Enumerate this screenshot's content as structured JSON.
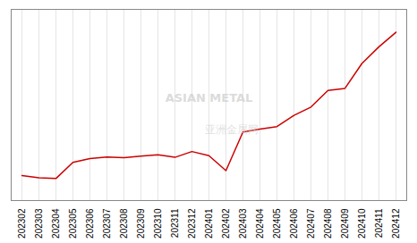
{
  "chart_data": {
    "type": "line",
    "categories": [
      "202302",
      "202303",
      "202304",
      "202305",
      "202306",
      "202307",
      "202308",
      "202309",
      "202310",
      "202311",
      "202312",
      "202401",
      "202402",
      "202403",
      "202404",
      "202405",
      "202406",
      "202407",
      "202408",
      "202409",
      "202410",
      "202411",
      "202412"
    ],
    "values": [
      32.0,
      31.5,
      31.3,
      35.2,
      36.1,
      36.5,
      36.3,
      36.7,
      37.0,
      36.4,
      37.8,
      36.8,
      33.2,
      42.5,
      43.2,
      43.8,
      46.5,
      48.5,
      52.5,
      53.0,
      59.0,
      63.0,
      66.5
    ],
    "color": "#cc0000",
    "ylim": [
      26,
      72
    ],
    "yticks": [],
    "grid": true,
    "tick_labels": "x",
    "annotations": [
      "ASIAN METAL",
      "亚洲金属网"
    ]
  }
}
